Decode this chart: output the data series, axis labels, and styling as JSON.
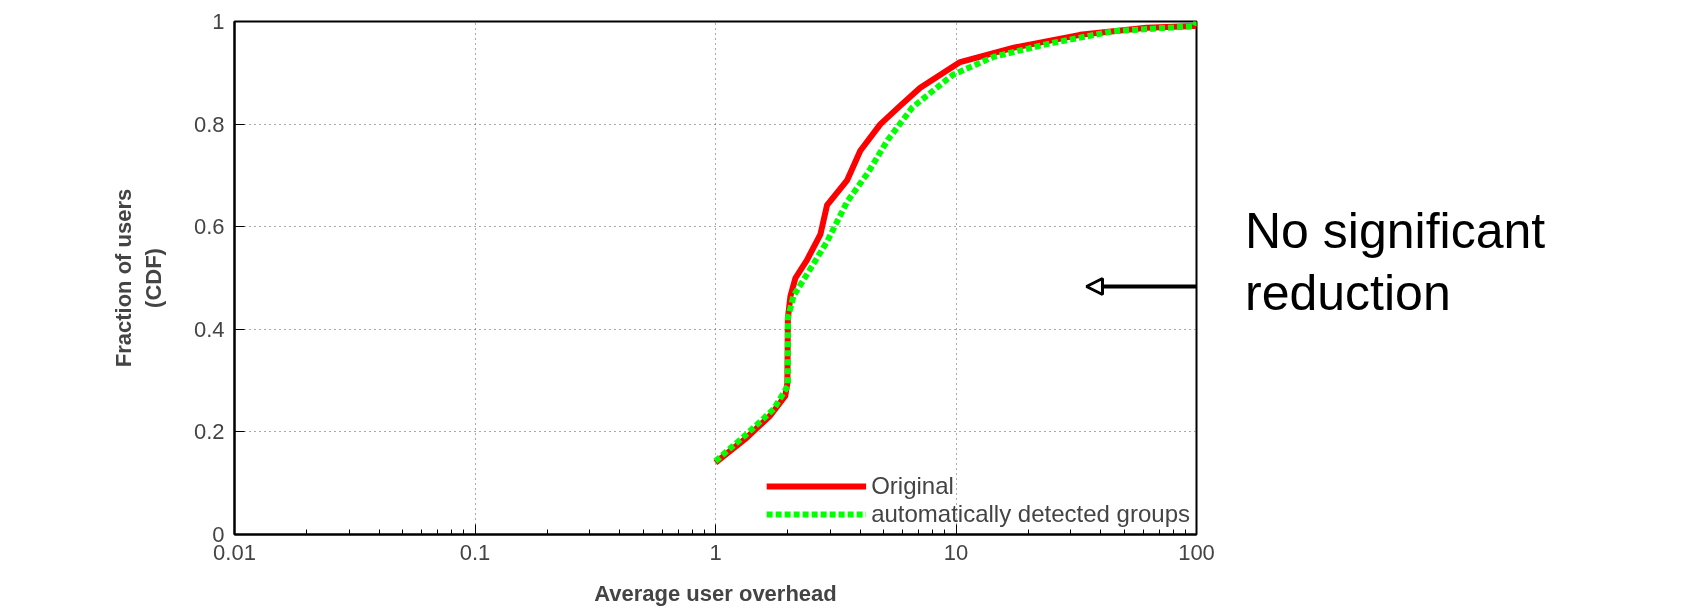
{
  "chart_data": {
    "type": "line",
    "xlabel": "Average user overhead",
    "ylabel": "Fraction of users\n(CDF)",
    "log": "x",
    "xlim": [
      0.01,
      100
    ],
    "xticks": [
      0.01,
      0.1,
      1,
      10,
      100
    ],
    "ylim": [
      0,
      1
    ],
    "yticks": [
      0,
      0.2,
      0.4,
      0.6,
      0.8,
      1
    ],
    "grid": true,
    "legend": "bottom right",
    "annotations": [
      "No significant\nreduction"
    ],
    "series": [
      {
        "name": "Original",
        "color": "#ff0000",
        "line_style": "solid",
        "x": [
          1.0,
          1.35,
          1.69,
          1.95,
          1.99,
          2.0,
          2.05,
          2.15,
          2.4,
          2.73,
          2.91,
          3.53,
          4.0,
          4.85,
          5.87,
          7.1,
          10.4,
          17.4,
          32.8,
          62,
          98,
          100
        ],
        "values": [
          0.14,
          0.189,
          0.232,
          0.27,
          0.295,
          0.422,
          0.465,
          0.5,
          0.535,
          0.585,
          0.642,
          0.691,
          0.748,
          0.8,
          0.836,
          0.871,
          0.921,
          0.949,
          0.974,
          0.988,
          0.991,
          1.0
        ]
      },
      {
        "name": "automatically detected groups",
        "color": "#00ff00",
        "line_style": "dashed",
        "x": [
          1.0,
          1.35,
          1.75,
          2.0,
          2.0,
          2.11,
          2.4,
          2.91,
          3.53,
          4.3,
          5.2,
          6.6,
          9.7,
          14.3,
          23.9,
          45,
          98,
          100
        ],
        "values": [
          0.143,
          0.196,
          0.245,
          0.29,
          0.422,
          0.465,
          0.507,
          0.571,
          0.649,
          0.705,
          0.769,
          0.833,
          0.896,
          0.931,
          0.956,
          0.981,
          0.991,
          1.0
        ]
      }
    ]
  }
}
